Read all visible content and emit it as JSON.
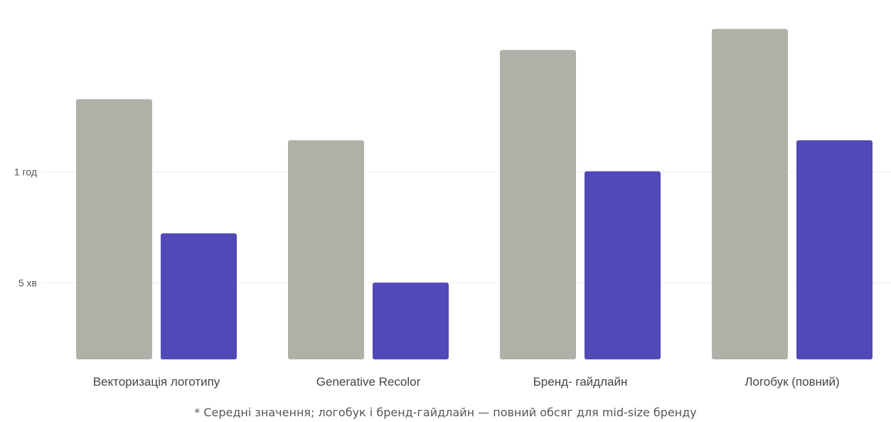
{
  "chart_data": {
    "type": "bar",
    "y_scale": "log",
    "y_ticks": [
      {
        "value": 5,
        "label": "5 хв"
      },
      {
        "value": 60,
        "label": "1 год"
      }
    ],
    "ylim": [
      0.9,
      2200
    ],
    "categories": [
      "Векторизація логотипу",
      "Generative Recolor",
      "Бренд- гайдлайн",
      "Логобук (повний)"
    ],
    "series": [
      {
        "color": "#b1b0a8",
        "values": [
          300,
          120,
          900,
          1440
        ]
      },
      {
        "color": "#5149b7",
        "values": [
          15,
          5,
          60,
          120
        ]
      }
    ],
    "grid": true,
    "legend": "none"
  },
  "footnote": "* Середні значення; логобук і бренд-гайдлайн — повний обсяг для mid-size бренду"
}
